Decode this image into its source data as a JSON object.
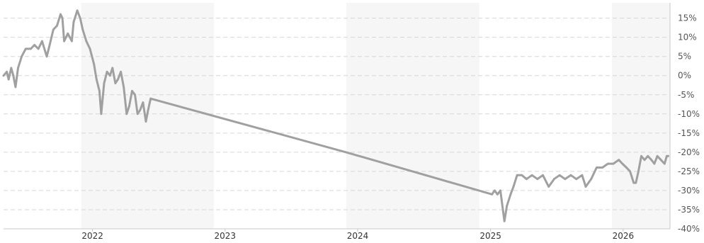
{
  "chart_data": {
    "type": "line",
    "title": "",
    "xlabel": "",
    "ylabel": "",
    "x_range": [
      "2021-05-01",
      "2026-05-10"
    ],
    "ylim": [
      -40,
      19
    ],
    "y_ticks": [
      15,
      10,
      5,
      0,
      -5,
      -10,
      -15,
      -20,
      -25,
      -30,
      -35,
      -40
    ],
    "y_tick_labels": [
      "15%",
      "10%",
      "5%",
      "0%",
      "-5%",
      "-10%",
      "-15%",
      "-20%",
      "-25%",
      "-30%",
      "-35%",
      "-40%"
    ],
    "x_ticks": [
      "2022-01-01",
      "2023-01-01",
      "2024-01-01",
      "2025-01-01",
      "2026-01-01"
    ],
    "x_tick_labels": [
      "2022",
      "2023",
      "2024",
      "2025",
      "2026"
    ],
    "grid": true,
    "shaded_periods": [
      [
        "2021-12-01",
        "2022-12-01"
      ],
      [
        "2023-12-01",
        "2024-12-01"
      ],
      [
        "2025-12-01",
        "2026-05-10"
      ]
    ],
    "line_color": "#a0a0a0",
    "series": [
      {
        "points": [
          [
            "2021-05-01",
            0
          ],
          [
            "2021-05-10",
            1
          ],
          [
            "2021-05-15",
            -1
          ],
          [
            "2021-05-22",
            2
          ],
          [
            "2021-05-28",
            0
          ],
          [
            "2021-06-03",
            -3
          ],
          [
            "2021-06-10",
            2
          ],
          [
            "2021-06-20",
            5
          ],
          [
            "2021-07-01",
            7
          ],
          [
            "2021-07-15",
            7
          ],
          [
            "2021-07-25",
            8
          ],
          [
            "2021-08-05",
            7
          ],
          [
            "2021-08-15",
            9
          ],
          [
            "2021-08-28",
            5
          ],
          [
            "2021-09-05",
            8
          ],
          [
            "2021-09-15",
            12
          ],
          [
            "2021-09-25",
            13
          ],
          [
            "2021-10-05",
            16
          ],
          [
            "2021-10-10",
            15
          ],
          [
            "2021-10-15",
            9
          ],
          [
            "2021-10-25",
            11
          ],
          [
            "2021-11-05",
            9
          ],
          [
            "2021-11-10",
            14
          ],
          [
            "2021-11-20",
            17
          ],
          [
            "2021-11-28",
            15
          ],
          [
            "2021-12-05",
            12
          ],
          [
            "2021-12-15",
            9
          ],
          [
            "2021-12-25",
            7
          ],
          [
            "2022-01-05",
            3
          ],
          [
            "2022-01-12",
            -1
          ],
          [
            "2022-01-20",
            -4
          ],
          [
            "2022-01-25",
            -10
          ],
          [
            "2022-02-02",
            -2
          ],
          [
            "2022-02-10",
            1
          ],
          [
            "2022-02-18",
            0
          ],
          [
            "2022-02-25",
            2
          ],
          [
            "2022-03-05",
            -2
          ],
          [
            "2022-03-12",
            -1
          ],
          [
            "2022-03-20",
            1
          ],
          [
            "2022-03-28",
            -3
          ],
          [
            "2022-04-05",
            -10
          ],
          [
            "2022-04-12",
            -8
          ],
          [
            "2022-04-20",
            -4
          ],
          [
            "2022-04-28",
            -5
          ],
          [
            "2022-05-05",
            -10
          ],
          [
            "2022-05-12",
            -9
          ],
          [
            "2022-05-20",
            -7
          ],
          [
            "2022-05-28",
            -12
          ],
          [
            "2022-06-03",
            -9
          ],
          [
            "2022-06-10",
            -6
          ],
          [
            "2023-11-30",
            -20
          ],
          [
            "2025-01-05",
            -31
          ],
          [
            "2025-01-12",
            -30
          ],
          [
            "2025-01-20",
            -31
          ],
          [
            "2025-01-28",
            -30
          ],
          [
            "2025-02-08",
            -38
          ],
          [
            "2025-02-15",
            -34
          ],
          [
            "2025-02-25",
            -31
          ],
          [
            "2025-03-05",
            -29
          ],
          [
            "2025-03-15",
            -26
          ],
          [
            "2025-03-28",
            -26
          ],
          [
            "2025-04-10",
            -27
          ],
          [
            "2025-04-25",
            -26
          ],
          [
            "2025-05-10",
            -27
          ],
          [
            "2025-05-25",
            -26
          ],
          [
            "2025-06-10",
            -29
          ],
          [
            "2025-06-25",
            -27
          ],
          [
            "2025-07-10",
            -26
          ],
          [
            "2025-07-25",
            -27
          ],
          [
            "2025-08-10",
            -26
          ],
          [
            "2025-08-25",
            -27
          ],
          [
            "2025-09-10",
            -26
          ],
          [
            "2025-09-20",
            -29
          ],
          [
            "2025-10-05",
            -27
          ],
          [
            "2025-10-20",
            -24
          ],
          [
            "2025-11-05",
            -24
          ],
          [
            "2025-11-20",
            -23
          ],
          [
            "2025-12-05",
            -23
          ],
          [
            "2025-12-20",
            -22
          ],
          [
            "2025-12-30",
            -23
          ],
          [
            "2026-01-10",
            -24
          ],
          [
            "2026-01-20",
            -25
          ],
          [
            "2026-01-30",
            -28
          ],
          [
            "2026-02-05",
            -28
          ],
          [
            "2026-02-12",
            -25
          ],
          [
            "2026-02-20",
            -21
          ],
          [
            "2026-03-01",
            -22
          ],
          [
            "2026-03-10",
            -21
          ],
          [
            "2026-03-20",
            -22
          ],
          [
            "2026-03-28",
            -23
          ],
          [
            "2026-04-05",
            -21
          ],
          [
            "2026-04-15",
            -22
          ],
          [
            "2026-04-25",
            -23
          ],
          [
            "2026-05-01",
            -21
          ],
          [
            "2026-05-05",
            -21
          ]
        ]
      }
    ]
  }
}
